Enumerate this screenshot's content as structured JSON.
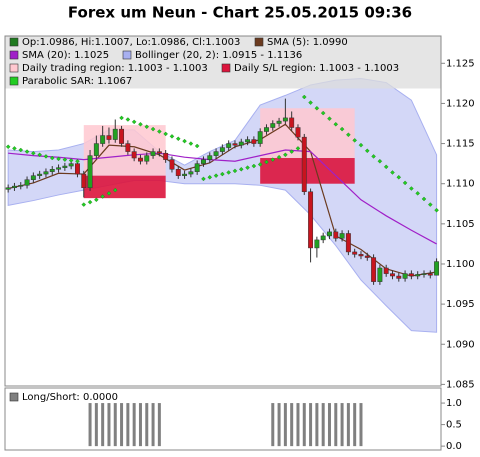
{
  "chart_data": {
    "type": "candlestick",
    "title": "Forex um Neun - Chart 25.05.2015 09:36",
    "xlim": [
      -0.5,
      68.7
    ],
    "ylim": [
      1.0848,
      1.1284
    ],
    "yticks": [
      1.085,
      {
        "value": 1.09,
        "label": "1.090"
      },
      1.095,
      {
        "value": 1.1,
        "label": "1.100"
      },
      1.105,
      {
        "value": 1.11,
        "label": "1.110"
      },
      1.115,
      {
        "value": 1.12,
        "label": "1.120"
      },
      1.125
    ],
    "ohlc": {
      "name": "Op:1.0986, Hi:1.1007, Lo:1.0986, Cl:1.1003",
      "color": "#1f7a1f",
      "up_color": "#22a022",
      "down_color": "#c8141e",
      "open": [
        1.1093,
        1.1095,
        1.1097,
        1.1098,
        1.1105,
        1.111,
        1.1112,
        1.1115,
        1.1118,
        1.112,
        1.1122,
        1.1125,
        1.1112,
        1.1095,
        1.1135,
        1.115,
        1.116,
        1.1155,
        1.1168,
        1.115,
        1.114,
        1.1132,
        1.1128,
        1.1135,
        1.114,
        1.1138,
        1.113,
        1.1118,
        1.111,
        1.1112,
        1.1115,
        1.1125,
        1.113,
        1.1135,
        1.114,
        1.1145,
        1.115,
        1.1148,
        1.1152,
        1.1155,
        1.115,
        1.1165,
        1.117,
        1.1175,
        1.1178,
        1.1182,
        1.117,
        1.1158,
        1.109,
        1.102,
        1.103,
        1.1035,
        1.104,
        1.1032,
        1.1038,
        1.1015,
        1.1012,
        1.101,
        1.1008,
        1.0978,
        1.0995,
        1.0988,
        1.0985,
        1.0982,
        1.0988,
        1.0985,
        1.0987,
        1.0988,
        1.0986
      ],
      "high": [
        1.1099,
        1.1101,
        1.1102,
        1.1109,
        1.1114,
        1.1116,
        1.1119,
        1.1122,
        1.1124,
        1.1126,
        1.1129,
        1.1129,
        1.1116,
        1.1142,
        1.116,
        1.1172,
        1.117,
        1.118,
        1.1172,
        1.1154,
        1.1144,
        1.1136,
        1.1139,
        1.1144,
        1.1144,
        1.1142,
        1.1134,
        1.1122,
        1.1116,
        1.1119,
        1.1129,
        1.1134,
        1.1139,
        1.1144,
        1.1149,
        1.1154,
        1.1154,
        1.1156,
        1.1159,
        1.1159,
        1.1169,
        1.1174,
        1.1179,
        1.1182,
        1.1206,
        1.119,
        1.1174,
        1.1162,
        1.1094,
        1.1034,
        1.1039,
        1.1044,
        1.1044,
        1.1042,
        1.1042,
        1.1019,
        1.1016,
        1.1014,
        1.1012,
        1.0999,
        1.0999,
        1.0992,
        1.0989,
        1.0992,
        1.0992,
        1.0991,
        1.0992,
        1.0992,
        1.1007
      ],
      "low": [
        1.1089,
        1.1091,
        1.1093,
        1.1094,
        1.1101,
        1.1106,
        1.1108,
        1.1111,
        1.1114,
        1.1116,
        1.1118,
        1.1108,
        1.1083,
        1.1091,
        1.1131,
        1.1146,
        1.115,
        1.1151,
        1.1146,
        1.1136,
        1.1128,
        1.1124,
        1.1124,
        1.1131,
        1.1134,
        1.1126,
        1.1114,
        1.1106,
        1.1106,
        1.1108,
        1.1111,
        1.1121,
        1.1126,
        1.1131,
        1.1136,
        1.1141,
        1.1144,
        1.1144,
        1.1148,
        1.1146,
        1.1146,
        1.1161,
        1.1166,
        1.1171,
        1.1174,
        1.1166,
        1.1154,
        1.1086,
        1.1002,
        1.1008,
        1.1026,
        1.1031,
        1.1028,
        1.1028,
        1.1011,
        1.1008,
        1.1006,
        1.1004,
        1.0974,
        1.0974,
        1.0984,
        1.0981,
        1.0978,
        1.0978,
        1.0981,
        1.0981,
        1.0983,
        1.0982,
        1.0986
      ],
      "close": [
        1.1095,
        1.1097,
        1.1098,
        1.1105,
        1.111,
        1.1112,
        1.1115,
        1.1118,
        1.112,
        1.1122,
        1.1125,
        1.1112,
        1.1095,
        1.1135,
        1.115,
        1.116,
        1.1155,
        1.1168,
        1.115,
        1.114,
        1.1132,
        1.1128,
        1.1135,
        1.114,
        1.1138,
        1.113,
        1.1118,
        1.111,
        1.1112,
        1.1115,
        1.1125,
        1.113,
        1.1135,
        1.114,
        1.1145,
        1.115,
        1.1148,
        1.1152,
        1.1155,
        1.115,
        1.1165,
        1.117,
        1.1175,
        1.1178,
        1.1182,
        1.117,
        1.1158,
        1.109,
        1.102,
        1.103,
        1.1035,
        1.104,
        1.1032,
        1.1038,
        1.1015,
        1.1012,
        1.101,
        1.1008,
        1.0978,
        1.0995,
        1.0988,
        1.0985,
        1.0982,
        1.0988,
        1.0985,
        1.0987,
        1.0988,
        1.0986,
        1.1003
      ]
    },
    "sma": [
      {
        "name": "SMA (5): 1.0990",
        "color": "#6b3a1f",
        "x": [
          0,
          4,
          8,
          12,
          16,
          20,
          24,
          28,
          32,
          36,
          40,
          44,
          48,
          52,
          56,
          60,
          64,
          68
        ],
        "values": [
          1.1094,
          1.1101,
          1.1113,
          1.1112,
          1.1148,
          1.1146,
          1.1136,
          1.1117,
          1.1126,
          1.1146,
          1.1155,
          1.1174,
          1.114,
          1.1035,
          1.1018,
          1.0994,
          1.0985,
          1.099
        ]
      },
      {
        "name": "SMA (20): 1.1025",
        "color": "#a020c8",
        "x": [
          0,
          4,
          8,
          12,
          16,
          20,
          24,
          28,
          32,
          36,
          40,
          44,
          48,
          52,
          56,
          60,
          64,
          68
        ],
        "values": [
          1.1138,
          1.1135,
          1.1133,
          1.113,
          1.1133,
          1.1136,
          1.1138,
          1.1133,
          1.113,
          1.1128,
          1.1135,
          1.1142,
          1.114,
          1.111,
          1.108,
          1.106,
          1.1042,
          1.1025
        ]
      }
    ],
    "bollinger": {
      "name": "Bollinger (20, 2): 1.0915 - 1.1136",
      "color": "#a8b0f0",
      "x": [
        0,
        4,
        8,
        12,
        16,
        20,
        24,
        28,
        32,
        36,
        40,
        44,
        48,
        52,
        56,
        60,
        64,
        68
      ],
      "upper": [
        1.1142,
        1.114,
        1.1142,
        1.115,
        1.1167,
        1.1167,
        1.114,
        1.1123,
        1.114,
        1.1154,
        1.1198,
        1.121,
        1.1223,
        1.1229,
        1.1231,
        1.1226,
        1.1204,
        1.1136
      ],
      "lower": [
        1.1073,
        1.1079,
        1.1086,
        1.1092,
        1.1098,
        1.1104,
        1.1104,
        1.11,
        1.11,
        1.11,
        1.1098,
        1.1092,
        1.1061,
        1.1023,
        1.098,
        1.0948,
        1.0917,
        1.0915
      ]
    },
    "regions": {
      "trading_name": "Daily trading region: 1.1003 - 1.1003",
      "trading_color": "#ffc8d0",
      "sl_name": "Daily S/L region: 1.1003 - 1.1003",
      "sl_color": "#dc143c",
      "items": [
        {
          "start": 12,
          "end": 25,
          "trading": [
            1.111,
            1.1173
          ],
          "sl": [
            1.1082,
            1.111
          ]
        },
        {
          "start": 40,
          "end": 55,
          "trading": [
            1.1132,
            1.1194
          ],
          "sl": [
            1.11,
            1.1132
          ]
        }
      ]
    },
    "sar": {
      "name": "Parabolic SAR: 1.1067",
      "color": "#22cc22",
      "values": [
        1.1146,
        1.1144,
        1.1142,
        1.114,
        1.1138,
        1.1136,
        1.1134,
        1.1132,
        1.1131,
        1.113,
        1.1129,
        1.1128,
        1.1074,
        1.1077,
        1.108,
        1.1084,
        1.1088,
        1.1092,
        1.1182,
        1.118,
        1.1177,
        1.1174,
        1.1171,
        1.1168,
        1.1165,
        1.1162,
        1.1159,
        1.1156,
        1.1153,
        1.115,
        1.1147,
        1.1106,
        1.1108,
        1.111,
        1.1112,
        1.1114,
        1.1116,
        1.1118,
        1.112,
        1.1122,
        1.1124,
        1.1127,
        1.113,
        1.1133,
        1.1136,
        1.114,
        1.1144,
        1.1208,
        1.1201,
        1.1194,
        1.1188,
        1.1181,
        1.1174,
        1.1168,
        1.1161,
        1.1154,
        1.1148,
        1.1141,
        1.1134,
        1.1128,
        1.1121,
        1.1114,
        1.1108,
        1.1101,
        1.1094,
        1.1088,
        1.1081,
        1.1074,
        1.1067
      ]
    },
    "long_short": {
      "name": "Long/Short: 0.0000",
      "color": "#808080",
      "ylim": [
        -0.09,
        1.35
      ],
      "yticks": [
        {
          "value": 0,
          "label": "0.0"
        },
        {
          "value": 0.5,
          "label": "0.5"
        },
        {
          "value": 1,
          "label": "1.0"
        }
      ],
      "values": [
        0,
        0,
        0,
        0,
        0,
        0,
        0,
        0,
        0,
        0,
        0,
        0,
        0,
        1,
        1,
        1,
        1,
        1,
        1,
        1,
        1,
        1,
        1,
        1,
        1,
        0,
        0,
        0,
        0,
        0,
        0,
        0,
        0,
        0,
        0,
        0,
        0,
        0,
        0,
        0,
        0,
        0,
        1,
        1,
        1,
        1,
        1,
        1,
        1,
        1,
        1,
        1,
        1,
        1,
        1,
        1,
        1,
        0,
        0,
        0,
        0,
        0,
        0,
        0,
        0,
        0,
        0,
        0,
        0
      ]
    }
  }
}
